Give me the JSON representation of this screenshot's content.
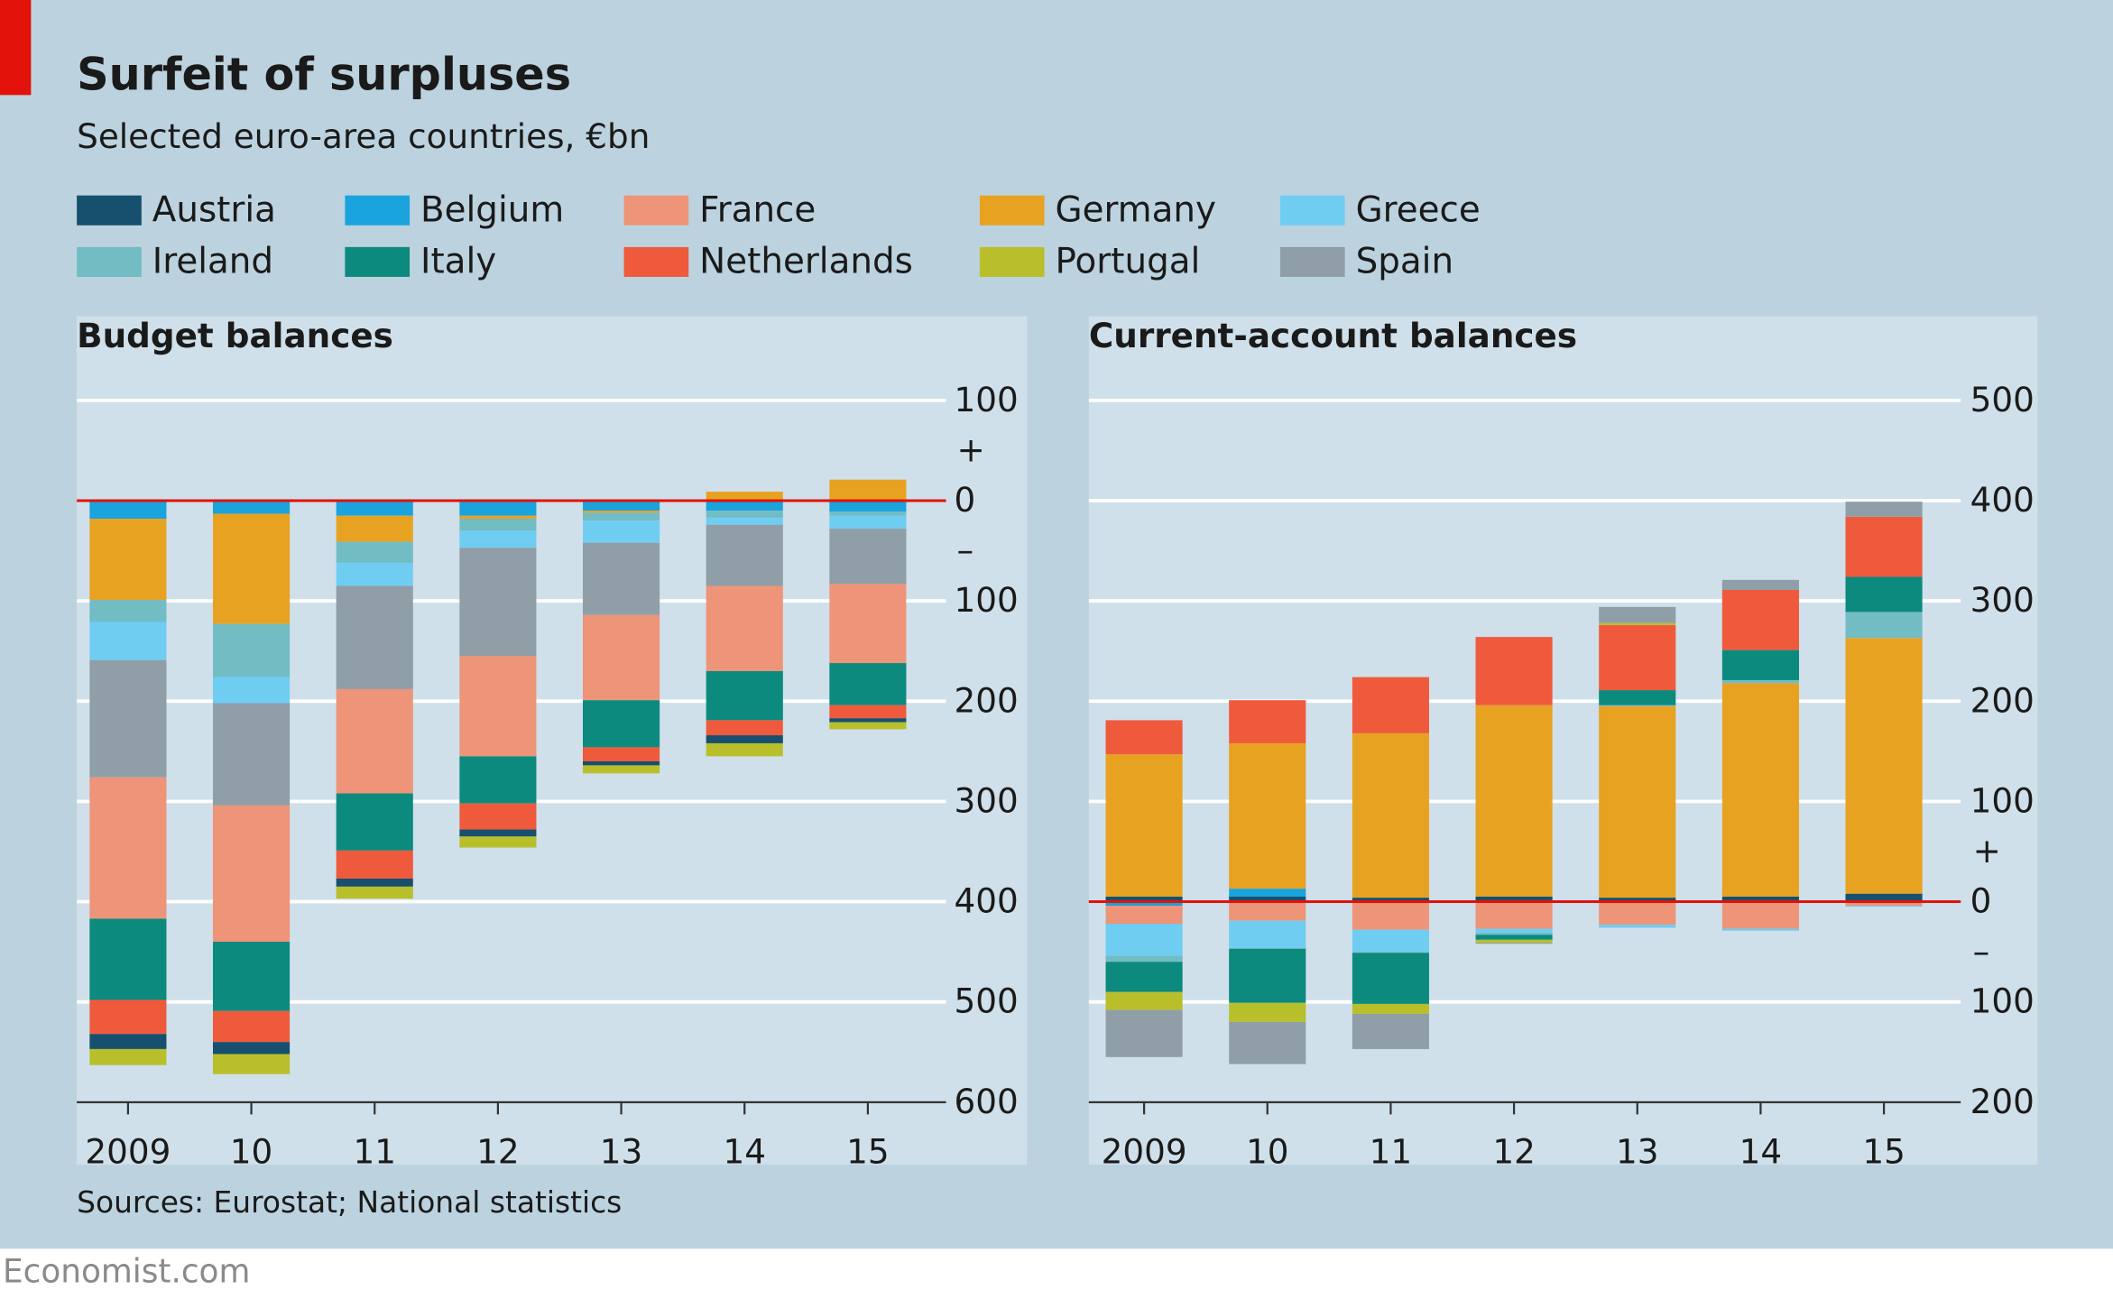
{
  "title": "Surfeit of surpluses",
  "subtitle": "Selected euro-area countries, €bn",
  "source": "Sources: Eurostat; National statistics",
  "brand": "Economist.com",
  "chart_data": [
    {
      "type": "bar",
      "stacked": true,
      "title": "Budget balances",
      "positive_sign": "+",
      "negative_sign": "–",
      "categories": [
        "2009",
        "10",
        "11",
        "12",
        "13",
        "14",
        "15"
      ],
      "ylim": [
        -600,
        100
      ],
      "yticks": [
        100,
        0,
        {
          "value": -100,
          "label": "100"
        },
        {
          "value": -200,
          "label": "200"
        },
        {
          "value": -300,
          "label": "300"
        },
        {
          "value": -400,
          "label": "400"
        },
        {
          "value": -500,
          "label": "500"
        },
        {
          "value": -600,
          "label": "600"
        }
      ],
      "grid": true,
      "series": [
        {
          "name": "Belgium",
          "color": "#1aa3dd",
          "values": [
            -18,
            -13,
            -15,
            -15,
            -10,
            -10,
            -11
          ]
        },
        {
          "name": "Germany",
          "color": "#e8a221",
          "values": [
            -81,
            -110,
            -26,
            -3,
            -2,
            9,
            21
          ]
        },
        {
          "name": "Ireland",
          "color": "#72bcc4",
          "values": [
            -22,
            -53,
            -21,
            -12,
            -8,
            -7,
            -4
          ]
        },
        {
          "name": "Greece",
          "color": "#6fcdf2",
          "values": [
            -38,
            -26,
            -23,
            -17,
            -22,
            -7,
            -13
          ]
        },
        {
          "name": "Spain",
          "color": "#8f9ea7",
          "values": [
            -117,
            -102,
            -103,
            -108,
            -72,
            -61,
            -55
          ]
        },
        {
          "name": "France",
          "color": "#ee9478",
          "values": [
            -141,
            -136,
            -104,
            -100,
            -85,
            -85,
            -79
          ]
        },
        {
          "name": "Italy",
          "color": "#0c8a7e",
          "values": [
            -81,
            -69,
            -57,
            -47,
            -47,
            -49,
            -42
          ]
        },
        {
          "name": "Netherlands",
          "color": "#ef5a3c",
          "values": [
            -34,
            -31,
            -28,
            -26,
            -14,
            -15,
            -13
          ]
        },
        {
          "name": "Austria",
          "color": "#17506e",
          "values": [
            -15,
            -12,
            -8,
            -7,
            -4,
            -8,
            -4
          ]
        },
        {
          "name": "Portugal",
          "color": "#b8bf2b",
          "values": [
            -16,
            -20,
            -12,
            -11,
            -8,
            -13,
            -7
          ]
        }
      ]
    },
    {
      "type": "bar",
      "stacked": true,
      "title": "Current-account balances",
      "positive_sign": "+",
      "negative_sign": "–",
      "categories": [
        "2009",
        "10",
        "11",
        "12",
        "13",
        "14",
        "15"
      ],
      "ylim": [
        -200,
        500
      ],
      "yticks": [
        500,
        400,
        300,
        200,
        100,
        0,
        {
          "value": -100,
          "label": "100"
        },
        {
          "value": -200,
          "label": "200"
        }
      ],
      "grid": true,
      "series": [
        {
          "name": "Austria",
          "color": "#17506e",
          "values": [
            5,
            5,
            4,
            5,
            4,
            5,
            8
          ]
        },
        {
          "name": "Belgium",
          "color": "#1aa3dd",
          "values": [
            -4,
            8,
            -1,
            -1,
            -1,
            -1,
            -1
          ]
        },
        {
          "name": "France",
          "color": "#ee9478",
          "values": [
            -18,
            -19,
            -27,
            -26,
            -22,
            -26,
            -3
          ]
        },
        {
          "name": "Germany",
          "color": "#e8a221",
          "values": [
            142,
            145,
            164,
            191,
            191,
            213,
            255
          ]
        },
        {
          "name": "Greece",
          "color": "#6fcdf2",
          "values": [
            -32,
            -27,
            -22,
            -4,
            -3,
            -2,
            -1
          ]
        },
        {
          "name": "Ireland",
          "color": "#72bcc4",
          "values": [
            -6,
            -1,
            -1,
            -2,
            1,
            3,
            26
          ]
        },
        {
          "name": "Italy",
          "color": "#0c8a7e",
          "values": [
            -30,
            -54,
            -51,
            -5,
            15,
            30,
            35
          ]
        },
        {
          "name": "Netherlands",
          "color": "#ef5a3c",
          "values": [
            34,
            43,
            56,
            68,
            65,
            60,
            60
          ]
        },
        {
          "name": "Portugal",
          "color": "#b8bf2b",
          "values": [
            -18,
            -19,
            -10,
            -3,
            2,
            0,
            0
          ]
        },
        {
          "name": "Spain",
          "color": "#8f9ea7",
          "values": [
            -47,
            -42,
            -35,
            -1,
            16,
            10,
            15
          ]
        }
      ]
    }
  ]
}
